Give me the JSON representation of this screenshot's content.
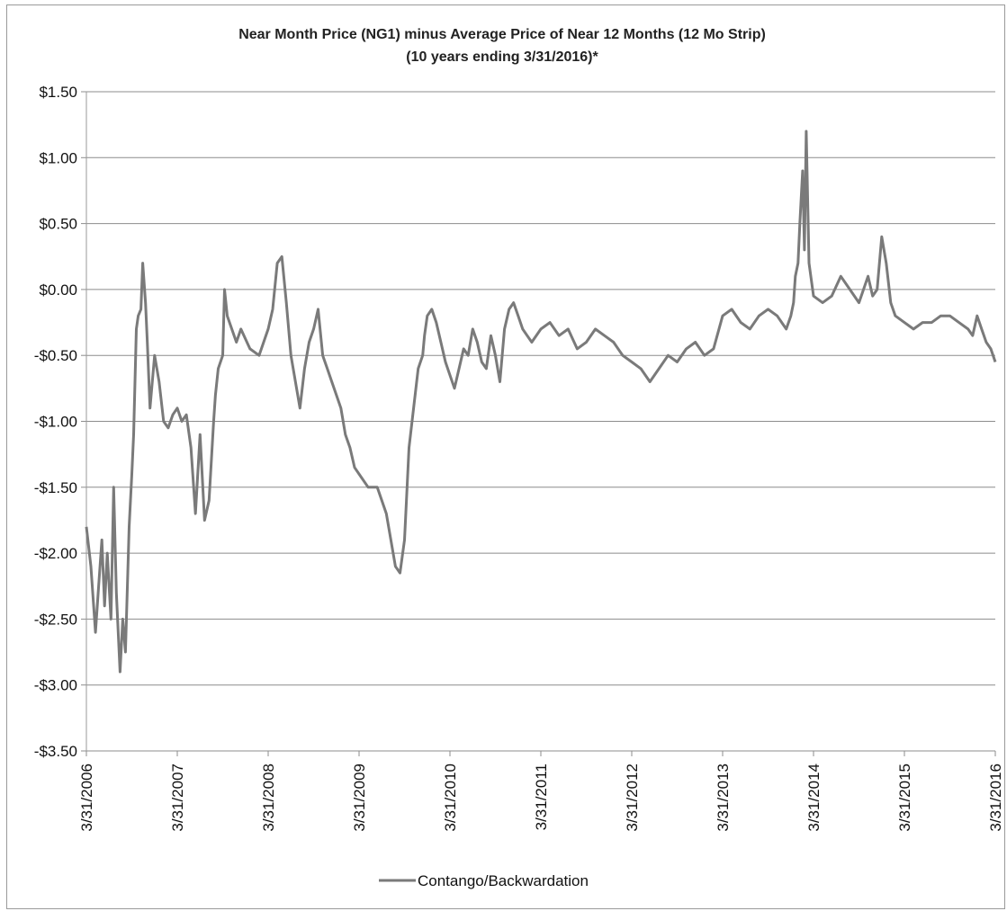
{
  "chart_data": {
    "type": "line",
    "title": "Near Month Price (NG1) minus Average Price of Near 12 Months (12 Mo Strip)",
    "subtitle": "(10 years ending 3/31/2016)*",
    "xlabel": "",
    "ylabel": "",
    "ylim": [
      -3.5,
      1.5
    ],
    "y_ticks": [
      1.5,
      1.0,
      0.5,
      0.0,
      -0.5,
      -1.0,
      -1.5,
      -2.0,
      -2.5,
      -3.0,
      -3.5
    ],
    "y_tick_labels": [
      "$1.50",
      "$1.00",
      "$0.50",
      "$0.00",
      "-$0.50",
      "-$1.00",
      "-$1.50",
      "-$2.00",
      "-$2.50",
      "-$3.00",
      "-$3.50"
    ],
    "x_tick_labels": [
      "3/31/2006",
      "3/31/2007",
      "3/31/2008",
      "3/31/2009",
      "3/31/2010",
      "3/31/2011",
      "3/31/2012",
      "3/31/2013",
      "3/31/2014",
      "3/31/2015",
      "3/31/2016"
    ],
    "grid": true,
    "legend_position": "bottom",
    "series": [
      {
        "name": "Contango/Backwardation",
        "color": "#7a7a7a",
        "x": [
          2006.0,
          2006.05,
          2006.1,
          2006.13,
          2006.17,
          2006.2,
          2006.23,
          2006.27,
          2006.3,
          2006.33,
          2006.37,
          2006.4,
          2006.43,
          2006.47,
          2006.5,
          2006.52,
          2006.55,
          2006.57,
          2006.6,
          2006.62,
          2006.65,
          2006.67,
          2006.7,
          2006.75,
          2006.8,
          2006.85,
          2006.9,
          2006.95,
          2007.0,
          2007.05,
          2007.1,
          2007.15,
          2007.2,
          2007.25,
          2007.3,
          2007.35,
          2007.4,
          2007.42,
          2007.45,
          2007.5,
          2007.52,
          2007.55,
          2007.6,
          2007.65,
          2007.7,
          2007.8,
          2007.9,
          2008.0,
          2008.05,
          2008.1,
          2008.15,
          2008.2,
          2008.25,
          2008.3,
          2008.35,
          2008.4,
          2008.45,
          2008.5,
          2008.55,
          2008.6,
          2008.65,
          2008.7,
          2008.75,
          2008.8,
          2008.85,
          2008.9,
          2008.95,
          2009.0,
          2009.1,
          2009.2,
          2009.3,
          2009.4,
          2009.45,
          2009.5,
          2009.55,
          2009.6,
          2009.65,
          2009.7,
          2009.72,
          2009.75,
          2009.8,
          2009.85,
          2009.9,
          2009.95,
          2010.0,
          2010.05,
          2010.1,
          2010.15,
          2010.2,
          2010.25,
          2010.3,
          2010.35,
          2010.4,
          2010.45,
          2010.5,
          2010.55,
          2010.6,
          2010.65,
          2010.7,
          2010.75,
          2010.8,
          2010.85,
          2010.9,
          2011.0,
          2011.1,
          2011.2,
          2011.3,
          2011.4,
          2011.5,
          2011.6,
          2011.7,
          2011.8,
          2011.9,
          2012.0,
          2012.1,
          2012.2,
          2012.3,
          2012.4,
          2012.5,
          2012.6,
          2012.7,
          2012.8,
          2012.9,
          2013.0,
          2013.1,
          2013.2,
          2013.3,
          2013.4,
          2013.5,
          2013.6,
          2013.65,
          2013.7,
          2013.75,
          2013.78,
          2013.8,
          2013.83,
          2013.85,
          2013.88,
          2013.9,
          2013.92,
          2013.95,
          2014.0,
          2014.1,
          2014.2,
          2014.3,
          2014.4,
          2014.5,
          2014.6,
          2014.65,
          2014.7,
          2014.75,
          2014.8,
          2014.85,
          2014.9,
          2015.0,
          2015.1,
          2015.2,
          2015.3,
          2015.4,
          2015.5,
          2015.6,
          2015.7,
          2015.75,
          2015.8,
          2015.85,
          2015.9,
          2015.95,
          2016.0
        ],
        "values": [
          -1.8,
          -2.1,
          -2.6,
          -2.3,
          -1.9,
          -2.4,
          -2.0,
          -2.5,
          -1.5,
          -2.3,
          -2.9,
          -2.5,
          -2.75,
          -1.8,
          -1.4,
          -1.1,
          -0.3,
          -0.2,
          -0.15,
          0.2,
          -0.1,
          -0.4,
          -0.9,
          -0.5,
          -0.7,
          -1.0,
          -1.05,
          -0.95,
          -0.9,
          -1.0,
          -0.95,
          -1.2,
          -1.7,
          -1.1,
          -1.75,
          -1.6,
          -1.0,
          -0.8,
          -0.6,
          -0.5,
          0.0,
          -0.2,
          -0.3,
          -0.4,
          -0.3,
          -0.45,
          -0.5,
          -0.3,
          -0.15,
          0.2,
          0.25,
          -0.1,
          -0.5,
          -0.7,
          -0.9,
          -0.6,
          -0.4,
          -0.3,
          -0.15,
          -0.5,
          -0.6,
          -0.7,
          -0.8,
          -0.9,
          -1.1,
          -1.2,
          -1.35,
          -1.4,
          -1.5,
          -1.5,
          -1.7,
          -2.1,
          -2.15,
          -1.9,
          -1.2,
          -0.9,
          -0.6,
          -0.5,
          -0.35,
          -0.2,
          -0.15,
          -0.25,
          -0.4,
          -0.55,
          -0.65,
          -0.75,
          -0.6,
          -0.45,
          -0.5,
          -0.3,
          -0.4,
          -0.55,
          -0.6,
          -0.35,
          -0.5,
          -0.7,
          -0.3,
          -0.15,
          -0.1,
          -0.2,
          -0.3,
          -0.35,
          -0.4,
          -0.3,
          -0.25,
          -0.35,
          -0.3,
          -0.45,
          -0.4,
          -0.3,
          -0.35,
          -0.4,
          -0.5,
          -0.55,
          -0.6,
          -0.7,
          -0.6,
          -0.5,
          -0.55,
          -0.45,
          -0.4,
          -0.5,
          -0.45,
          -0.2,
          -0.15,
          -0.25,
          -0.3,
          -0.2,
          -0.15,
          -0.2,
          -0.25,
          -0.3,
          -0.2,
          -0.1,
          0.1,
          0.2,
          0.5,
          0.9,
          0.3,
          1.2,
          0.2,
          -0.05,
          -0.1,
          -0.05,
          0.1,
          0.0,
          -0.1,
          0.1,
          -0.05,
          0.0,
          0.4,
          0.2,
          -0.1,
          -0.2,
          -0.25,
          -0.3,
          -0.25,
          -0.25,
          -0.2,
          -0.2,
          -0.25,
          -0.3,
          -0.35,
          -0.2,
          -0.3,
          -0.4,
          -0.45,
          -0.55
        ]
      }
    ]
  }
}
